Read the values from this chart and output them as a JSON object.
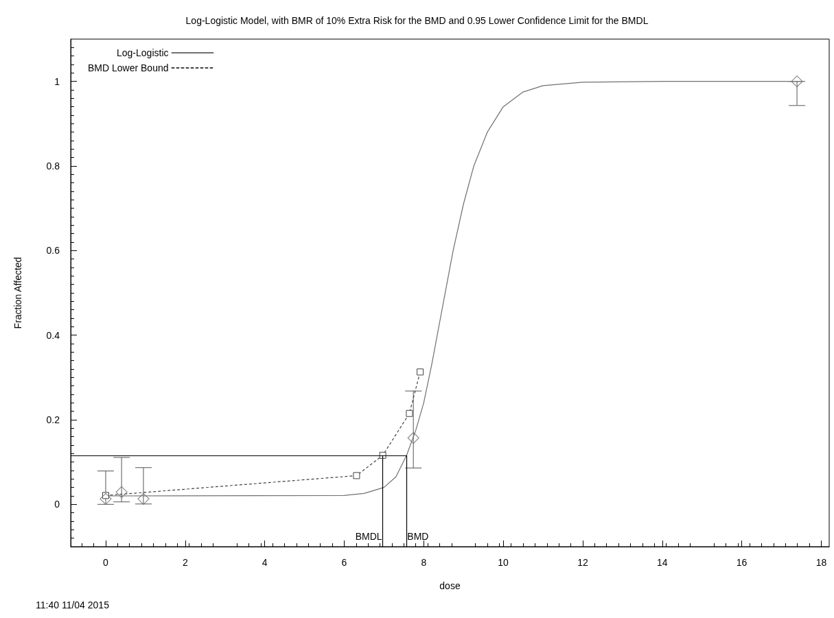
{
  "chart_data": {
    "type": "line",
    "title": "Log-Logistic Model, with BMR of 10% Extra Risk for the BMD and 0.95 Lower Confidence Limit for the BMDL",
    "xlabel": "dose",
    "ylabel": "Fraction Affected",
    "annotations": [
      "11:40 11/04 2015"
    ],
    "xlim": [
      -0.88,
      18.2
    ],
    "xticks": [
      0,
      2,
      4,
      6,
      8,
      10,
      12,
      14,
      16,
      18
    ],
    "ylim": [
      -0.1,
      1.1
    ],
    "yticks": [
      0,
      0.2,
      0.4,
      0.6,
      0.8,
      1
    ],
    "grid": false,
    "legend": "top left",
    "series": [
      {
        "name": "Log-Logistic",
        "color": "#707070",
        "line_style": "solid",
        "marker": "none",
        "x": [
          0,
          6,
          6.5,
          7,
          7.3,
          7.57,
          7.8,
          8.0,
          8.2,
          8.34,
          8.5,
          8.74,
          9.0,
          9.26,
          9.6,
          10,
          10.5,
          11,
          12,
          14,
          17.5
        ],
        "values": [
          0.02,
          0.021,
          0.026,
          0.04,
          0.065,
          0.116,
          0.175,
          0.24,
          0.33,
          0.4,
          0.48,
          0.6,
          0.71,
          0.8,
          0.88,
          0.94,
          0.975,
          0.99,
          0.998,
          1,
          1
        ]
      },
      {
        "name": "BMD Lower Bound",
        "type": "line",
        "color": "#404040",
        "line_style": "dotted",
        "marker": "square",
        "x": [
          0,
          6.31,
          6.97,
          7.64,
          7.91
        ],
        "values": [
          0.021,
          0.068,
          0.116,
          0.215,
          0.313
        ]
      },
      {
        "type": "scatter",
        "color": "#707070",
        "marker": "diamond",
        "x": [
          0,
          0.4,
          0.95,
          7.74,
          17.39
        ],
        "values": [
          0.013,
          0.029,
          0.013,
          0.157,
          1
        ],
        "errors": [
          [
            0.0,
            0.079
          ],
          [
            0.006,
            0.111
          ],
          [
            0.001,
            0.087
          ],
          [
            0.086,
            0.268
          ],
          [
            0.943,
            1
          ]
        ]
      }
    ],
    "ref_lines": [
      {
        "axis": "x",
        "value": 6.97,
        "label": "BMDL",
        "color": "#000000"
      },
      {
        "axis": "x",
        "value": 7.57,
        "label": "BMD",
        "color": "#000000"
      },
      {
        "axis": "y",
        "value": 0.116,
        "label": null,
        "color": "#000000"
      }
    ]
  }
}
